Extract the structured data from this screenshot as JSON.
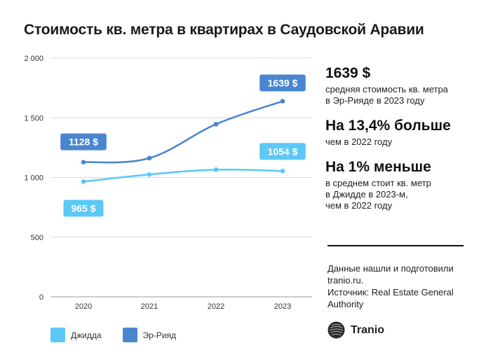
{
  "title": "Стоимость кв. метра в квартирах в Саудовской Аравии",
  "chart_data": {
    "type": "line",
    "categories": [
      "2020",
      "2021",
      "2022",
      "2023"
    ],
    "series": [
      {
        "name": "Джидда",
        "values": [
          965,
          1025,
          1065,
          1054
        ],
        "color": "#5bc8f5",
        "labels": [
          {
            "index": 0,
            "text": "965 $"
          },
          {
            "index": 3,
            "text": "1054 $"
          }
        ]
      },
      {
        "name": "Эр-Рияд",
        "values": [
          1128,
          1162,
          1446,
          1639
        ],
        "color": "#4a86d0",
        "labels": [
          {
            "index": 0,
            "text": "1128 $"
          },
          {
            "index": 3,
            "text": "1639 $"
          }
        ]
      }
    ],
    "yticks": [
      0,
      500,
      1000,
      1500,
      2000
    ],
    "ytick_labels": [
      "0",
      "500",
      "1 000",
      "1 500",
      "2 000"
    ],
    "ylim": [
      0,
      2000
    ],
    "grid": "horizontal",
    "legend": "bottom-left"
  },
  "stats": [
    {
      "big": "1639 $",
      "lines": [
        "средняя стоимость кв. метра",
        "в Эр-Рияде в 2023 году"
      ]
    },
    {
      "big": "На 13,4% больше",
      "lines": [
        "чем в 2022 году"
      ]
    },
    {
      "big": "На 1% меньше",
      "lines": [
        "в среднем стоит кв. метр",
        "в Джидде в 2023-м,",
        "чем в 2022 году"
      ]
    }
  ],
  "source": {
    "lines": [
      "Данные нашли и подготовили",
      "tranio.ru.",
      "Источник: Real Estate General",
      "Authority"
    ]
  },
  "brand": {
    "name": "Tranio",
    "icon": "tranio-logo-icon"
  }
}
